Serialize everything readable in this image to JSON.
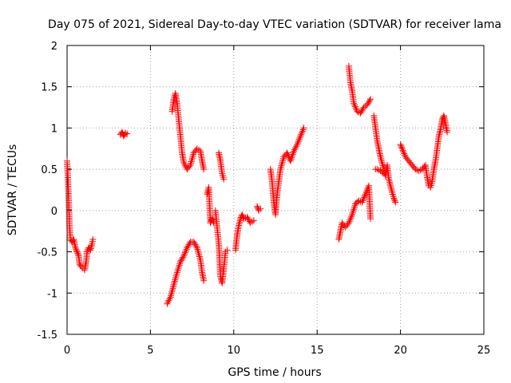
{
  "chart_data": {
    "type": "scatter",
    "title": "Day 075 of 2021, Sidereal Day-to-day VTEC variation (SDTVAR) for receiver lama",
    "xlabel": "GPS time / hours",
    "ylabel": "SDTVAR / TECUs",
    "xlim": [
      0,
      25
    ],
    "ylim": [
      -1.5,
      2
    ],
    "xticks": [
      0,
      5,
      10,
      15,
      20,
      25
    ],
    "xtick_labels": [
      "0",
      "5",
      "10",
      "15",
      "20",
      "25"
    ],
    "yticks": [
      -1.5,
      -1,
      -0.5,
      0,
      0.5,
      1,
      1.5,
      2
    ],
    "ytick_labels": [
      "-1.5",
      "-1",
      "-0.5",
      "0",
      "0.5",
      "1",
      "1.5",
      "2"
    ],
    "grid": true,
    "marker": "+",
    "color": "#ff0000",
    "series_segments": [
      [
        [
          0.0,
          0.6
        ],
        [
          0.05,
          0.4
        ],
        [
          0.1,
          0.1
        ],
        [
          0.15,
          -0.2
        ],
        [
          0.2,
          -0.35
        ],
        [
          0.3,
          -0.38
        ],
        [
          0.4,
          -0.35
        ],
        [
          0.5,
          -0.45
        ],
        [
          0.6,
          -0.5
        ],
        [
          0.7,
          -0.55
        ],
        [
          0.75,
          -0.65
        ],
        [
          0.85,
          -0.68
        ],
        [
          0.95,
          -0.7
        ],
        [
          1.05,
          -0.72
        ],
        [
          1.15,
          -0.62
        ],
        [
          1.2,
          -0.5
        ],
        [
          1.3,
          -0.45
        ],
        [
          1.4,
          -0.48
        ],
        [
          1.5,
          -0.4
        ],
        [
          1.55,
          -0.35
        ]
      ],
      [
        [
          3.2,
          0.92
        ],
        [
          3.3,
          0.95
        ],
        [
          3.4,
          0.9
        ],
        [
          3.5,
          0.94
        ],
        [
          3.6,
          0.93
        ]
      ],
      [
        [
          6.0,
          -1.13
        ],
        [
          6.2,
          -1.05
        ],
        [
          6.4,
          -0.9
        ],
        [
          6.6,
          -0.75
        ],
        [
          6.8,
          -0.62
        ],
        [
          7.0,
          -0.55
        ],
        [
          7.2,
          -0.45
        ],
        [
          7.4,
          -0.38
        ],
        [
          7.6,
          -0.38
        ],
        [
          7.8,
          -0.45
        ],
        [
          8.0,
          -0.6
        ],
        [
          8.1,
          -0.75
        ],
        [
          8.2,
          -0.85
        ]
      ],
      [
        [
          6.3,
          1.2
        ],
        [
          6.4,
          1.35
        ],
        [
          6.5,
          1.42
        ],
        [
          6.6,
          1.3
        ],
        [
          6.7,
          1.1
        ],
        [
          6.8,
          0.9
        ],
        [
          6.9,
          0.7
        ],
        [
          7.0,
          0.58
        ],
        [
          7.2,
          0.5
        ],
        [
          7.4,
          0.55
        ],
        [
          7.6,
          0.7
        ],
        [
          7.8,
          0.75
        ],
        [
          8.0,
          0.72
        ],
        [
          8.1,
          0.6
        ],
        [
          8.2,
          0.5
        ]
      ],
      [
        [
          8.4,
          0.2
        ],
        [
          8.5,
          0.28
        ],
        [
          8.6,
          -0.15
        ],
        [
          8.7,
          -0.1
        ],
        [
          8.8,
          -0.15
        ]
      ],
      [
        [
          9.1,
          0.7
        ],
        [
          9.2,
          0.6
        ],
        [
          9.3,
          0.45
        ],
        [
          9.4,
          0.38
        ]
      ],
      [
        [
          8.9,
          0.0
        ],
        [
          9.0,
          -0.2
        ],
        [
          9.1,
          -0.4
        ],
        [
          9.2,
          -0.8
        ],
        [
          9.3,
          -0.88
        ],
        [
          9.4,
          -0.7
        ],
        [
          9.5,
          -0.5
        ],
        [
          9.6,
          -0.48
        ]
      ],
      [
        [
          10.1,
          -0.48
        ],
        [
          10.2,
          -0.3
        ],
        [
          10.3,
          -0.18
        ],
        [
          10.4,
          -0.1
        ],
        [
          10.5,
          -0.05
        ],
        [
          10.6,
          -0.1
        ],
        [
          10.8,
          -0.08
        ],
        [
          11.0,
          -0.15
        ],
        [
          11.2,
          -0.12
        ]
      ],
      [
        [
          11.4,
          0.05
        ],
        [
          11.5,
          0.0
        ],
        [
          11.6,
          0.02
        ]
      ],
      [
        [
          12.2,
          0.5
        ],
        [
          12.3,
          0.35
        ],
        [
          12.4,
          0.1
        ],
        [
          12.5,
          -0.05
        ],
        [
          12.6,
          0.2
        ],
        [
          12.7,
          0.35
        ],
        [
          12.8,
          0.5
        ],
        [
          13.0,
          0.65
        ],
        [
          13.2,
          0.7
        ],
        [
          13.4,
          0.6
        ],
        [
          13.6,
          0.72
        ],
        [
          13.8,
          0.8
        ],
        [
          14.0,
          0.9
        ],
        [
          14.2,
          1.0
        ]
      ],
      [
        [
          16.3,
          -0.35
        ],
        [
          16.4,
          -0.25
        ],
        [
          16.5,
          -0.15
        ],
        [
          16.7,
          -0.2
        ],
        [
          16.9,
          -0.15
        ],
        [
          17.1,
          -0.05
        ],
        [
          17.3,
          0.08
        ],
        [
          17.5,
          0.12
        ],
        [
          17.7,
          0.1
        ],
        [
          17.9,
          0.2
        ],
        [
          18.1,
          0.3
        ],
        [
          18.2,
          -0.1
        ]
      ],
      [
        [
          16.9,
          1.75
        ],
        [
          17.0,
          1.55
        ],
        [
          17.1,
          1.45
        ],
        [
          17.2,
          1.3
        ],
        [
          17.4,
          1.2
        ],
        [
          17.6,
          1.18
        ],
        [
          17.8,
          1.25
        ],
        [
          18.0,
          1.28
        ],
        [
          18.2,
          1.35
        ]
      ],
      [
        [
          18.4,
          1.15
        ],
        [
          18.5,
          1.0
        ],
        [
          18.6,
          0.85
        ],
        [
          18.7,
          0.75
        ],
        [
          18.8,
          0.65
        ],
        [
          19.0,
          0.5
        ],
        [
          19.1,
          0.42
        ],
        [
          19.2,
          0.55
        ],
        [
          19.3,
          0.38
        ],
        [
          19.4,
          0.3
        ],
        [
          19.5,
          0.22
        ],
        [
          19.6,
          0.15
        ],
        [
          19.7,
          0.1
        ]
      ],
      [
        [
          18.5,
          0.5
        ],
        [
          18.6,
          0.5
        ],
        [
          18.8,
          0.48
        ],
        [
          19.0,
          0.45
        ]
      ],
      [
        [
          20.0,
          0.8
        ],
        [
          20.1,
          0.75
        ],
        [
          20.3,
          0.65
        ],
        [
          20.5,
          0.6
        ],
        [
          20.7,
          0.55
        ],
        [
          20.9,
          0.5
        ],
        [
          21.1,
          0.48
        ],
        [
          21.3,
          0.5
        ],
        [
          21.5,
          0.55
        ],
        [
          21.6,
          0.4
        ],
        [
          21.7,
          0.3
        ],
        [
          21.8,
          0.28
        ],
        [
          21.9,
          0.35
        ],
        [
          22.0,
          0.5
        ],
        [
          22.1,
          0.6
        ],
        [
          22.2,
          0.75
        ],
        [
          22.3,
          0.9
        ],
        [
          22.4,
          0.98
        ],
        [
          22.5,
          1.1
        ],
        [
          22.6,
          1.15
        ],
        [
          22.7,
          1.05
        ],
        [
          22.8,
          0.95
        ]
      ]
    ]
  }
}
